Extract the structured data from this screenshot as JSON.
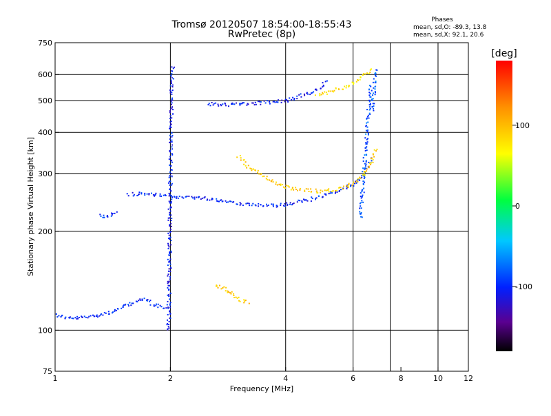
{
  "header": {
    "title": "Tromsø 20120507 18:54:00-18:55:43",
    "subtitle": "RwPretec (8p)",
    "phases": {
      "title": "Phases",
      "line_o": "mean, sd,O: -89.3, 13.8",
      "line_x": "mean, sd,X: 92.1, 20.6"
    }
  },
  "chart_data": {
    "type": "scatter",
    "x_scale": "log",
    "y_scale": "log",
    "xlabel": "Frequency [MHz]",
    "ylabel": "Stationary phase Virtual Height [km]",
    "xlim": [
      1,
      12
    ],
    "ylim": [
      75,
      750
    ],
    "x_ticks": [
      1,
      2,
      4,
      6,
      8,
      10,
      12
    ],
    "y_ticks": [
      75,
      100,
      200,
      300,
      400,
      500,
      600,
      750
    ],
    "x_grid": [
      2,
      4,
      6,
      7.5,
      10
    ],
    "y_grid": [
      100,
      200,
      300,
      400,
      500,
      600
    ],
    "colorbar": {
      "label": "[deg]",
      "range": [
        -180,
        180
      ],
      "ticks": [
        100,
        0,
        -100
      ]
    },
    "traces": [
      {
        "x": [
          1.0,
          1.05,
          1.1,
          1.2,
          1.3,
          1.4,
          1.5,
          1.6,
          1.7,
          1.8,
          1.9,
          1.97
        ],
        "y": [
          112,
          110,
          109,
          110,
          112,
          114,
          118,
          122,
          125,
          120,
          118,
          118
        ],
        "phase": -100
      },
      {
        "x": [
          1.97,
          1.98,
          1.99,
          2.0,
          2.01,
          2.02,
          2.03
        ],
        "y": [
          100,
          150,
          250,
          400,
          550,
          620,
          640
        ],
        "phase": -105
      },
      {
        "x": [
          1.3,
          1.35,
          1.4,
          1.45
        ],
        "y": [
          225,
          222,
          225,
          232
        ],
        "phase": -95
      },
      {
        "x": [
          1.55,
          1.7,
          1.9,
          2.1,
          2.4,
          2.8,
          3.2,
          3.6,
          4.0,
          4.4,
          4.8,
          5.2,
          5.6,
          6.0,
          6.4,
          6.7
        ],
        "y": [
          260,
          262,
          258,
          256,
          254,
          248,
          242,
          240,
          242,
          248,
          254,
          262,
          270,
          280,
          300,
          340
        ],
        "phase": -100
      },
      {
        "x": [
          2.5,
          2.8,
          3.1,
          3.4,
          3.7,
          4.0,
          4.3,
          4.6,
          4.9,
          5.1
        ],
        "y": [
          490,
          488,
          490,
          494,
          498,
          503,
          515,
          530,
          550,
          575
        ],
        "phase": -105
      },
      {
        "x": [
          6.25,
          6.35,
          6.45,
          6.55,
          6.65
        ],
        "y": [
          220,
          280,
          360,
          450,
          560
        ],
        "phase": -85
      },
      {
        "x": [
          3.0,
          3.2,
          3.5,
          3.8,
          4.1,
          4.5,
          4.9,
          5.3,
          5.8,
          6.2,
          6.6,
          6.85
        ],
        "y": [
          340,
          315,
          295,
          280,
          272,
          268,
          266,
          268,
          275,
          290,
          315,
          360
        ],
        "phase": 90
      },
      {
        "x": [
          4.8,
          5.2,
          5.6,
          6.0,
          6.4,
          6.7
        ],
        "y": [
          520,
          535,
          550,
          570,
          600,
          630
        ],
        "phase": 80
      },
      {
        "x": [
          6.7,
          6.75,
          6.8,
          6.85,
          6.9
        ],
        "y": [
          470,
          520,
          570,
          610,
          630
        ],
        "phase": -80
      },
      {
        "x": [
          2.6,
          2.8,
          3.0,
          3.2
        ],
        "y": [
          138,
          133,
          125,
          122
        ],
        "phase": 90
      }
    ]
  }
}
